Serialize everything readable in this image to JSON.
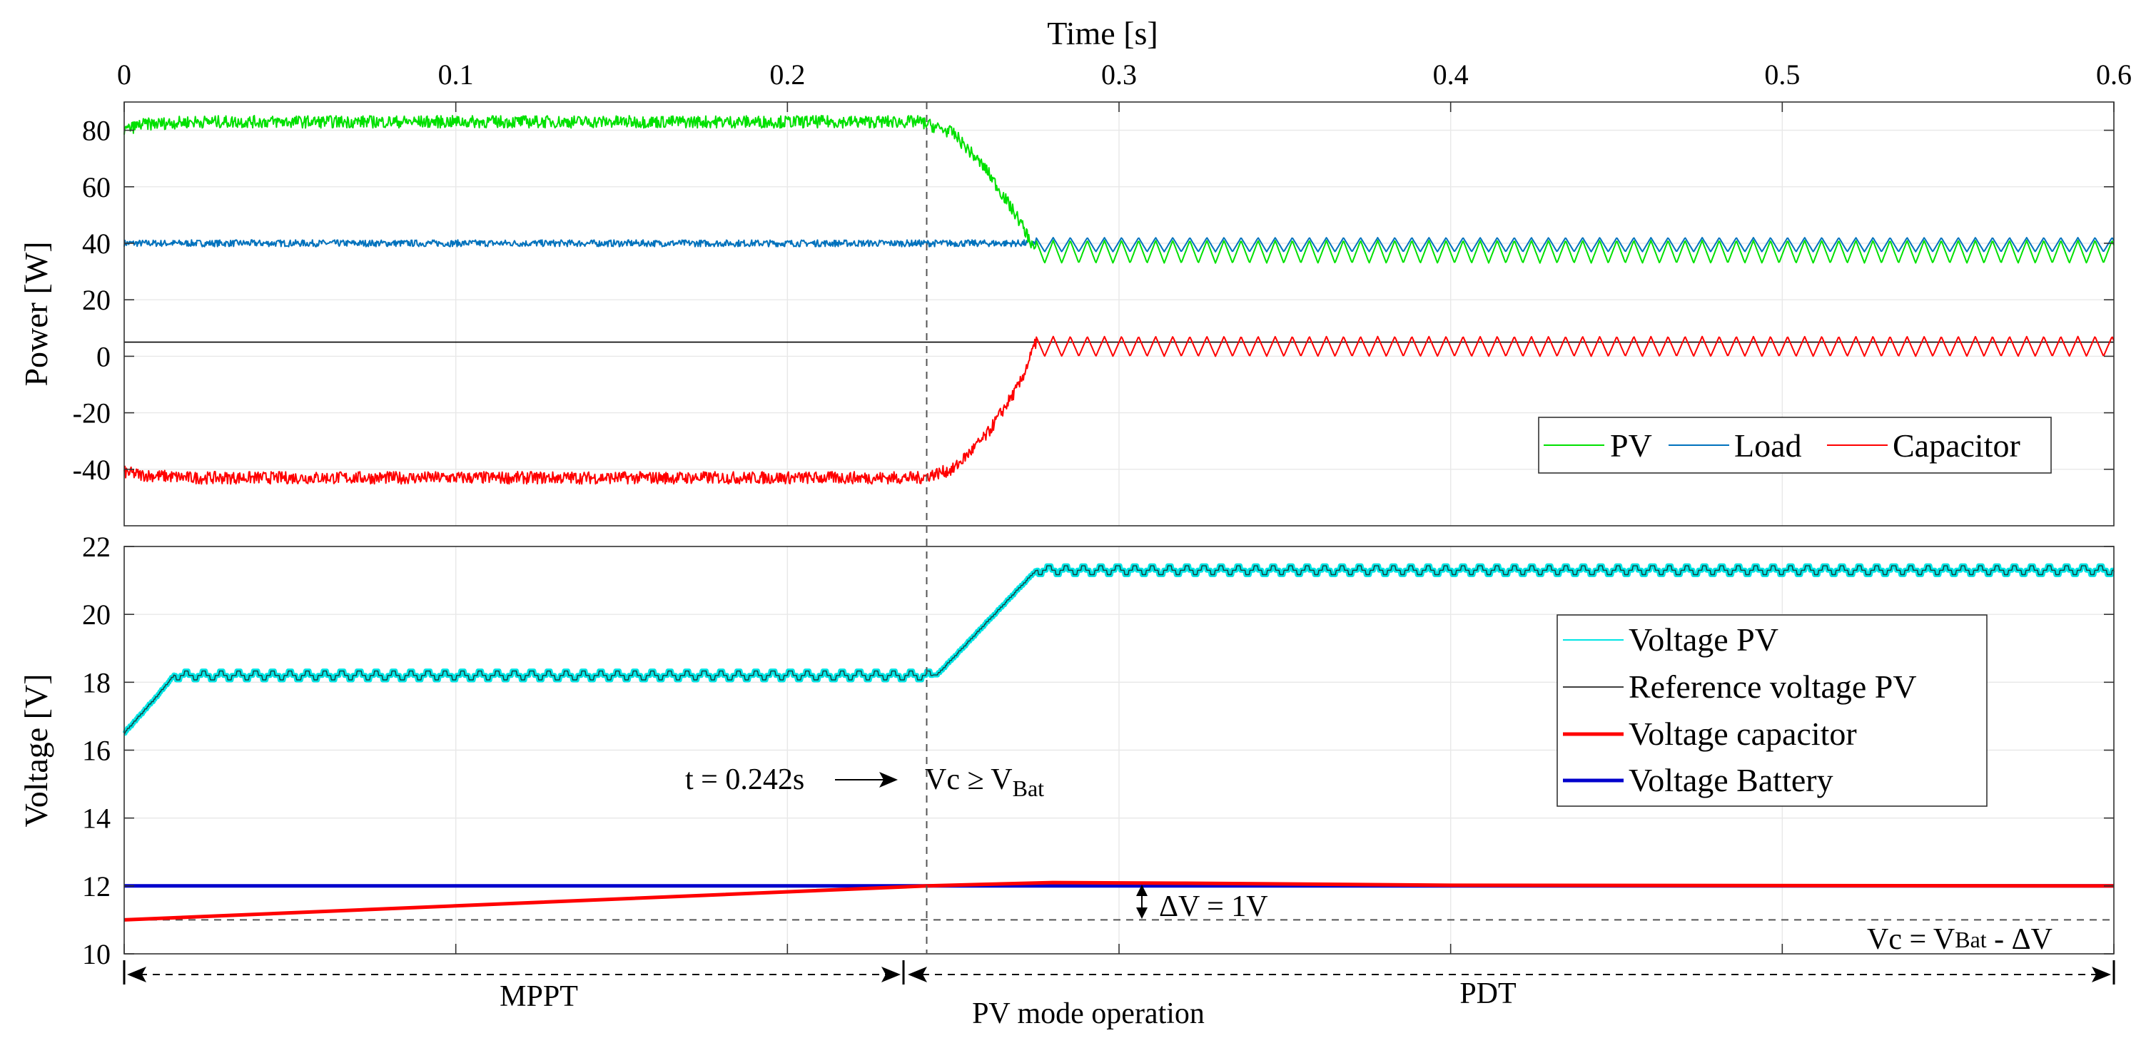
{
  "chart_data": [
    {
      "type": "line",
      "xlabel": "Time [s]",
      "ylabel": "Power [W]",
      "xlim": [
        0,
        0.6
      ],
      "ylim": [
        -60,
        90
      ],
      "xticks": [
        "0",
        "0.1",
        "0.2",
        "0.3",
        "0.4",
        "0.5",
        "0.6"
      ],
      "yticks": [
        "-40",
        "-20",
        "0",
        "20",
        "40",
        "60",
        "80"
      ],
      "grid": true,
      "legend_position": "bottom-right",
      "series": [
        {
          "name": "PV",
          "color": "#00e000",
          "x": [
            0,
            0.005,
            0.02,
            0.1,
            0.2,
            0.24,
            0.25,
            0.26,
            0.27,
            0.275,
            0.6
          ],
          "y": [
            80,
            82,
            83,
            83,
            83,
            83,
            79,
            66,
            48,
            37,
            37
          ],
          "ripple_after": 0.275,
          "ripple_band": [
            33,
            41
          ]
        },
        {
          "name": "Load",
          "color": "#0072bd",
          "x": [
            0,
            0.6
          ],
          "y": [
            40,
            40
          ],
          "ripple_after": 0.275,
          "ripple_band": [
            37,
            42
          ]
        },
        {
          "name": "Capacitor",
          "color": "#ff0000",
          "x": [
            0,
            0.005,
            0.02,
            0.1,
            0.2,
            0.24,
            0.25,
            0.26,
            0.27,
            0.275,
            0.6
          ],
          "y": [
            -41,
            -42,
            -43,
            -43,
            -43,
            -43,
            -40,
            -28,
            -10,
            5,
            5
          ],
          "ripple_after": 0.275,
          "ripple_band": [
            0,
            7
          ]
        }
      ],
      "reference_line": {
        "value": 5,
        "color": "#000000"
      }
    },
    {
      "type": "line",
      "xlabel": "",
      "ylabel": "Voltage [V]",
      "xlim": [
        0,
        0.6
      ],
      "ylim": [
        10,
        22
      ],
      "yticks": [
        "10",
        "12",
        "14",
        "16",
        "18",
        "20",
        "22"
      ],
      "grid": true,
      "legend_position": "right",
      "series": [
        {
          "name": "Voltage PV",
          "color": "#00e5e5",
          "x": [
            0,
            0.01,
            0.015,
            0.242,
            0.245,
            0.275,
            0.6
          ],
          "y": [
            16.5,
            17.6,
            18.2,
            18.2,
            18.2,
            21.3,
            21.3
          ]
        },
        {
          "name": "Reference voltage PV",
          "color": "#000000",
          "x": [
            0,
            0.01,
            0.015,
            0.242,
            0.245,
            0.275,
            0.6
          ],
          "y": [
            16.5,
            17.6,
            18.2,
            18.2,
            18.2,
            21.3,
            21.3
          ]
        },
        {
          "name": "Voltage capacitor",
          "color": "#ff0000",
          "x": [
            0,
            0.242,
            0.26,
            0.28,
            0.32,
            0.4,
            0.6
          ],
          "y": [
            11,
            12,
            12.05,
            12.1,
            12.08,
            12.02,
            12
          ]
        },
        {
          "name": "Voltage Battery",
          "color": "#0000cc",
          "x": [
            0,
            0.6
          ],
          "y": [
            12,
            12
          ]
        }
      ],
      "threshold_line": {
        "value": 11,
        "label_main": "Vc = V",
        "label_sub": "Bat",
        "label_tail": " - ΔV"
      },
      "event_line": {
        "x": 0.242,
        "label": "t = 0.242s"
      },
      "annotations": {
        "vc_condition_main": "Vc ≥ V",
        "vc_condition_sub": "Bat",
        "delta_v": "ΔV = 1V",
        "mppt": "MPPT",
        "pdt": "PDT",
        "pv_mode": "PV mode operation"
      }
    }
  ]
}
